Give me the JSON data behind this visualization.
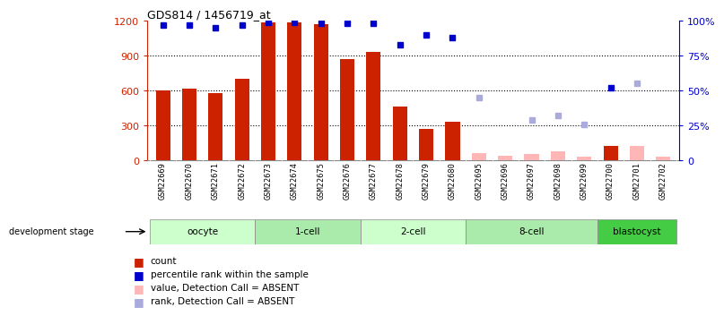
{
  "title": "GDS814 / 1456719_at",
  "samples": [
    "GSM22669",
    "GSM22670",
    "GSM22671",
    "GSM22672",
    "GSM22673",
    "GSM22674",
    "GSM22675",
    "GSM22676",
    "GSM22677",
    "GSM22678",
    "GSM22679",
    "GSM22680",
    "GSM22695",
    "GSM22696",
    "GSM22697",
    "GSM22698",
    "GSM22699",
    "GSM22700",
    "GSM22701",
    "GSM22702"
  ],
  "count_values": [
    600,
    615,
    580,
    700,
    1190,
    1185,
    1175,
    870,
    930,
    460,
    270,
    330,
    null,
    null,
    null,
    null,
    null,
    120,
    null,
    null
  ],
  "count_absent": [
    null,
    null,
    null,
    null,
    null,
    null,
    null,
    null,
    null,
    null,
    null,
    null,
    60,
    40,
    55,
    75,
    30,
    null,
    120,
    30
  ],
  "rank_values": [
    97,
    97,
    95,
    97,
    99,
    99,
    98,
    98,
    98,
    83,
    90,
    88,
    null,
    null,
    null,
    null,
    null,
    52,
    null,
    null
  ],
  "rank_absent": [
    null,
    null,
    null,
    null,
    null,
    null,
    null,
    null,
    null,
    null,
    null,
    null,
    45,
    null,
    29,
    32,
    26,
    null,
    55,
    null
  ],
  "stages": [
    {
      "label": "oocyte",
      "start": 0,
      "end": 4,
      "color": "#CCFFCC"
    },
    {
      "label": "1-cell",
      "start": 4,
      "end": 8,
      "color": "#AAEAAA"
    },
    {
      "label": "2-cell",
      "start": 8,
      "end": 12,
      "color": "#CCFFCC"
    },
    {
      "label": "8-cell",
      "start": 12,
      "end": 17,
      "color": "#AAEAAA"
    },
    {
      "label": "blastocyst",
      "start": 17,
      "end": 20,
      "color": "#44CC44"
    }
  ],
  "ylim_left": [
    0,
    1200
  ],
  "ylim_right": [
    0,
    100
  ],
  "yticks_left": [
    0,
    300,
    600,
    900,
    1200
  ],
  "yticks_right": [
    0,
    25,
    50,
    75,
    100
  ],
  "bar_color": "#CC2200",
  "bar_absent_color": "#FFB6B6",
  "rank_color": "#0000CC",
  "rank_absent_color": "#AAAADD",
  "bg_color": "#FFFFFF",
  "xlabel_bg": "#CCCCCC"
}
